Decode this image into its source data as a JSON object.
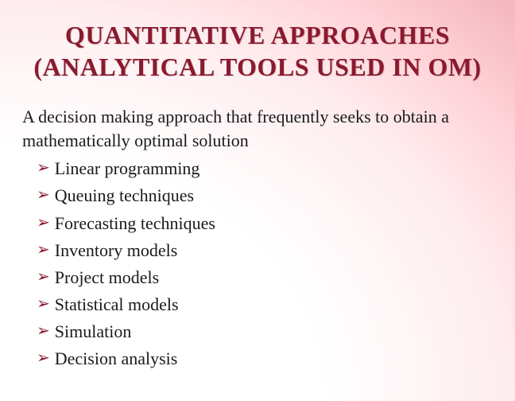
{
  "title": {
    "line1": "QUANTITATIVE APPROACHES",
    "line2": "(ANALYTICAL TOOLS USED IN OM)",
    "color": "#8b1a2e",
    "fontsize": 32,
    "font_weight": "bold"
  },
  "intro_text": "A decision making approach that frequently seeks to obtain a mathematically optimal solution",
  "bullet_glyph": "➢",
  "bullet_color": "#8b1a2e",
  "body_color": "#1a1a1a",
  "body_fontsize": 22,
  "list_items": [
    "Linear programming",
    "Queuing techniques",
    "Forecasting techniques",
    "Inventory models",
    "Project models",
    "Statistical models",
    "Simulation",
    "Decision analysis"
  ],
  "background": {
    "type": "radial-gradient",
    "stops": [
      "#ffffff",
      "#ffeef0",
      "#ffd5da",
      "#f5b8c0"
    ]
  }
}
